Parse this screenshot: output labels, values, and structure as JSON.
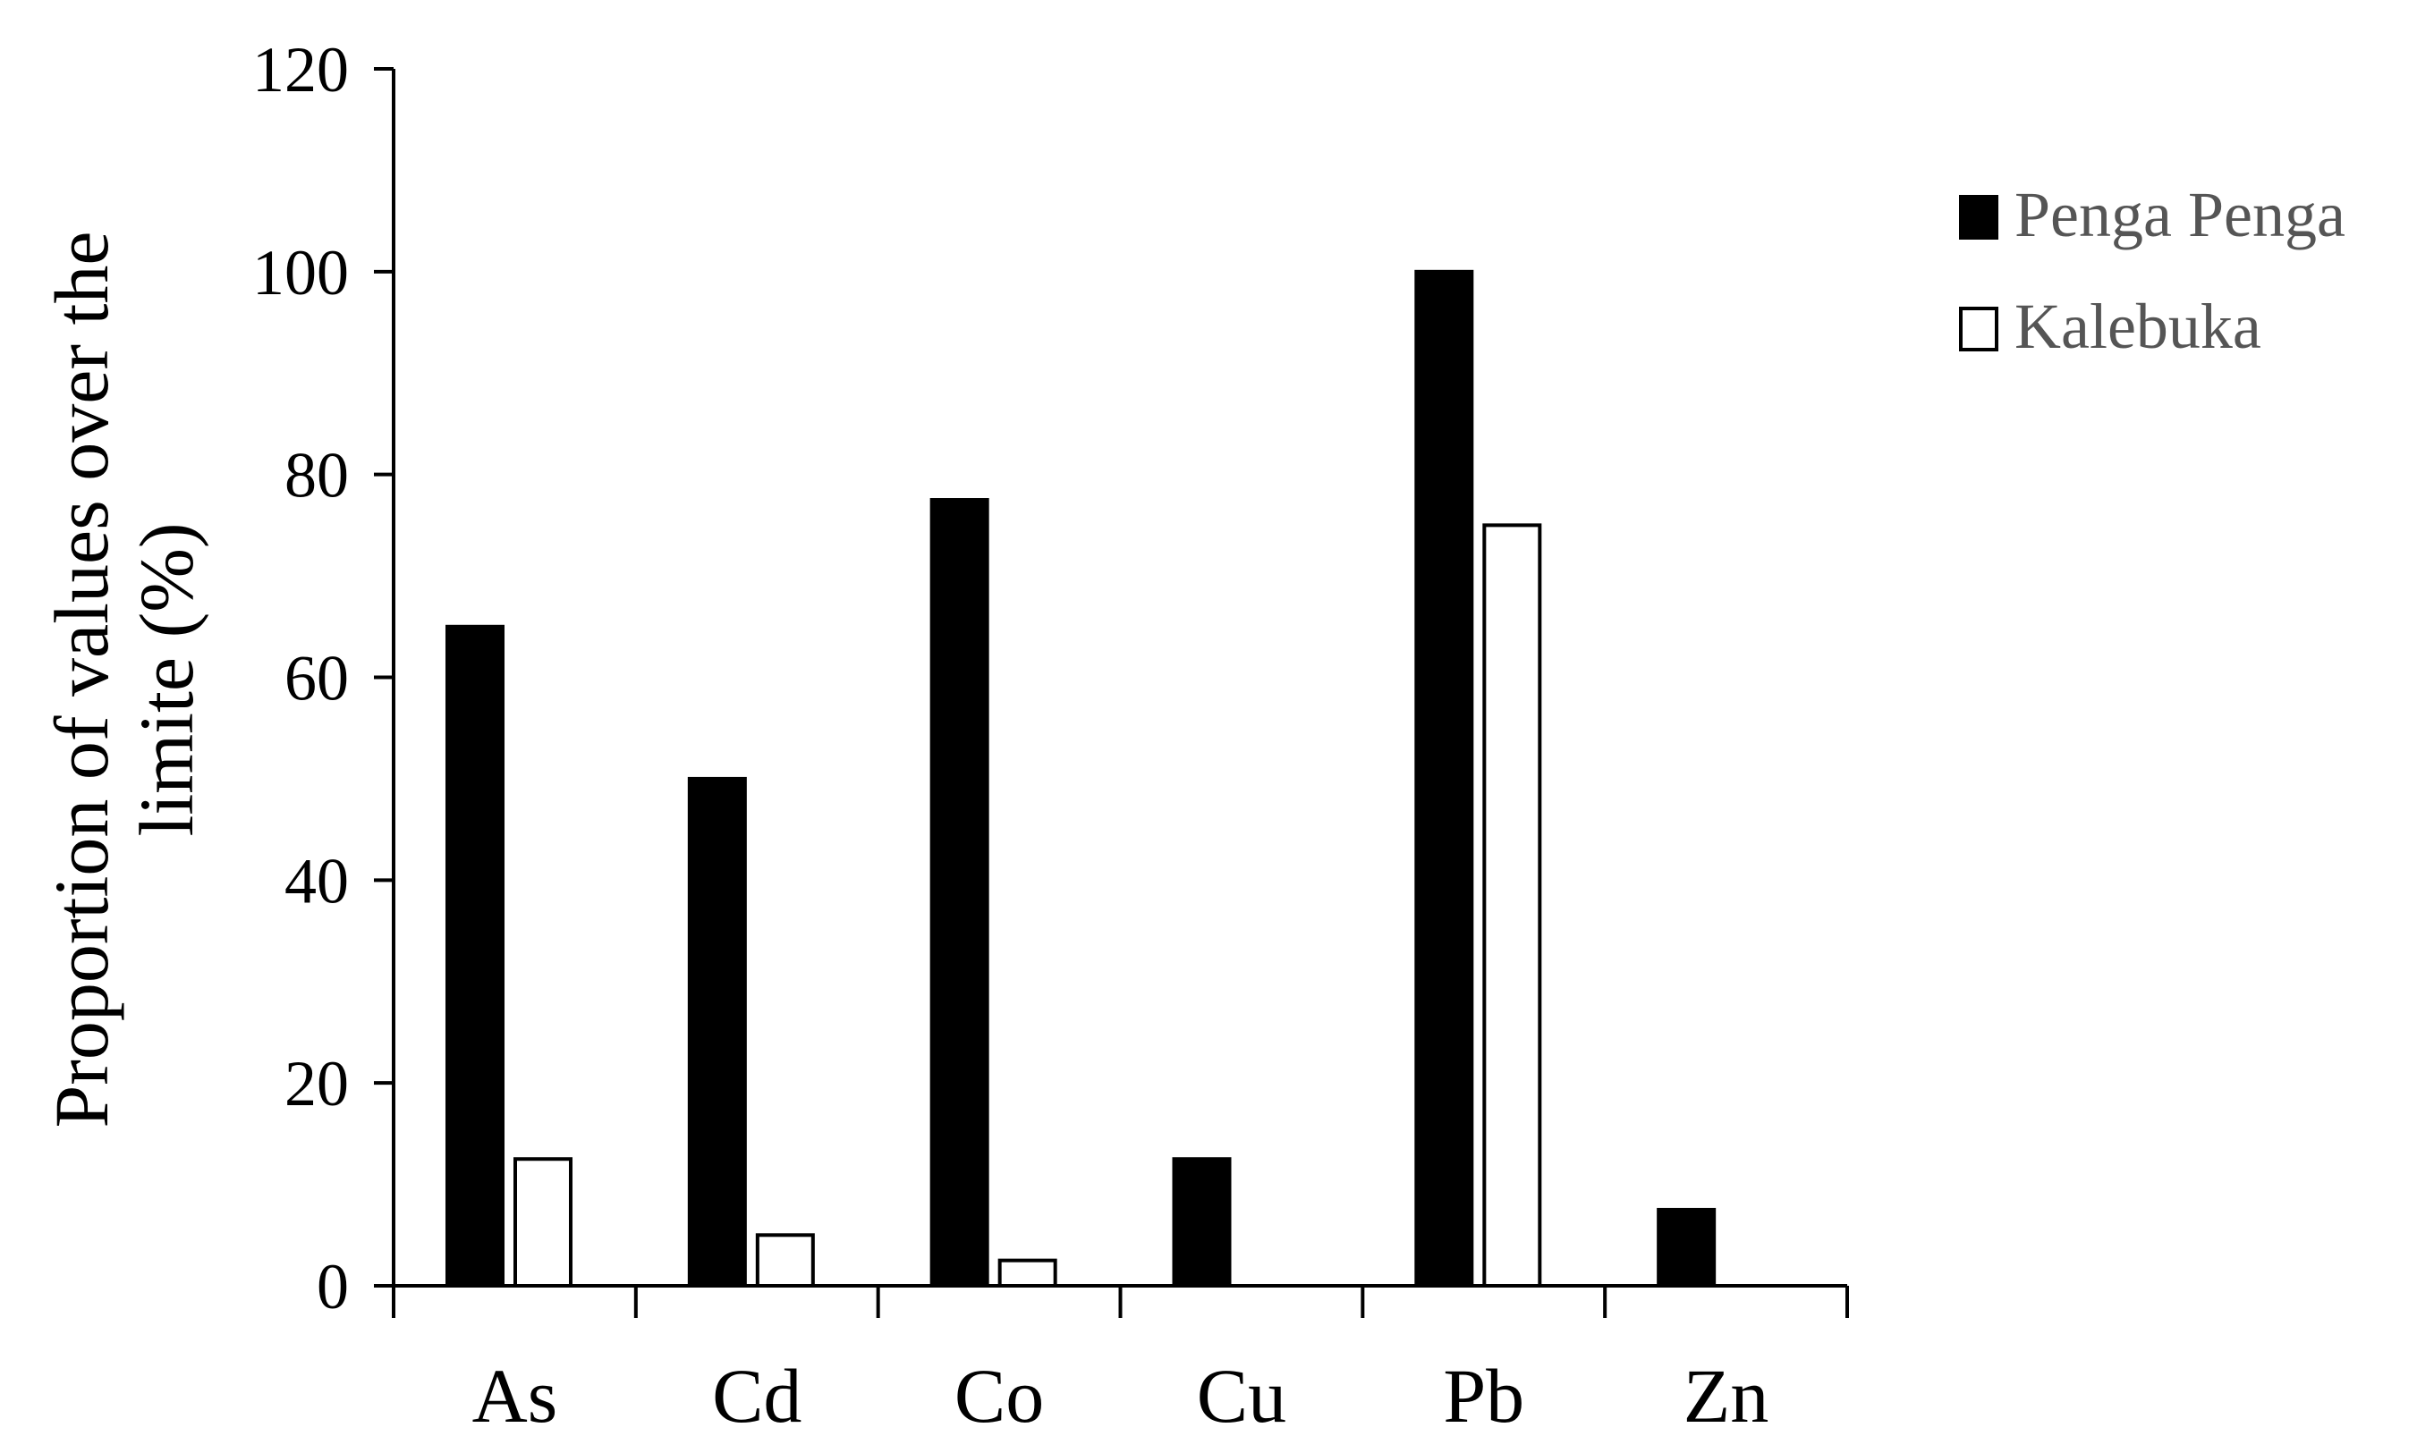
{
  "chart_data": {
    "type": "bar",
    "categories": [
      "As",
      "Cd",
      "Co",
      "Cu",
      "Pb",
      "Zn"
    ],
    "series": [
      {
        "name": "Penga Penga",
        "values": [
          65,
          50,
          77.5,
          12.5,
          100,
          7.5
        ],
        "color": "#000000"
      },
      {
        "name": "Kalebuka",
        "values": [
          12.5,
          5,
          2.5,
          0,
          75,
          0
        ],
        "color": "#ffffff"
      }
    ],
    "ylabel_lines": [
      "Proportion of values over the",
      "limite (%)"
    ],
    "ylim": [
      0,
      120
    ],
    "yticks": [
      0,
      20,
      40,
      60,
      80,
      100,
      120
    ],
    "grid": false,
    "legend_position": "top-right"
  }
}
